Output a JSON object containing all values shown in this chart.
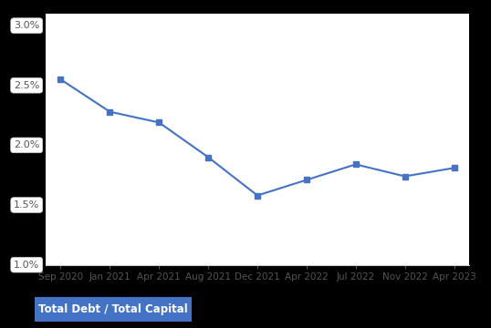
{
  "x_labels": [
    "Sep 2020",
    "Jan 2021",
    "Apr 2021",
    "Aug 2021",
    "Dec 2021",
    "Apr 2022",
    "Jul 2022",
    "Nov 2022",
    "Apr 2023"
  ],
  "x_values": [
    0,
    1,
    2,
    3,
    4,
    5,
    6,
    7,
    8
  ],
  "y_values": [
    0.0255,
    0.0228,
    0.0219,
    0.019,
    0.0158,
    0.0171,
    0.0184,
    0.0174,
    0.0181
  ],
  "line_color": "#4472C4",
  "marker": "s",
  "marker_size": 4,
  "ylim": [
    0.01,
    0.031
  ],
  "yticks": [
    0.01,
    0.015,
    0.02,
    0.025,
    0.03
  ],
  "ytick_labels": [
    "1.0%",
    "1.5%",
    "2.0%",
    "2.5%",
    "3.0%"
  ],
  "legend_label": "Total Debt / Total Capital",
  "legend_bg": "#4472C4",
  "outer_bg_color": "#000000",
  "plot_bg": "#ffffff",
  "grid_color": "#ffffff",
  "tick_label_color": "#555555",
  "x_tick_color": "#555555",
  "legend_box_color": "#4472C4",
  "legend_text_color": "#1a1a1a",
  "ytick_box_color": "#ffffff",
  "ytick_box_edge": "#cccccc",
  "bottom_line_color": "#cccccc"
}
